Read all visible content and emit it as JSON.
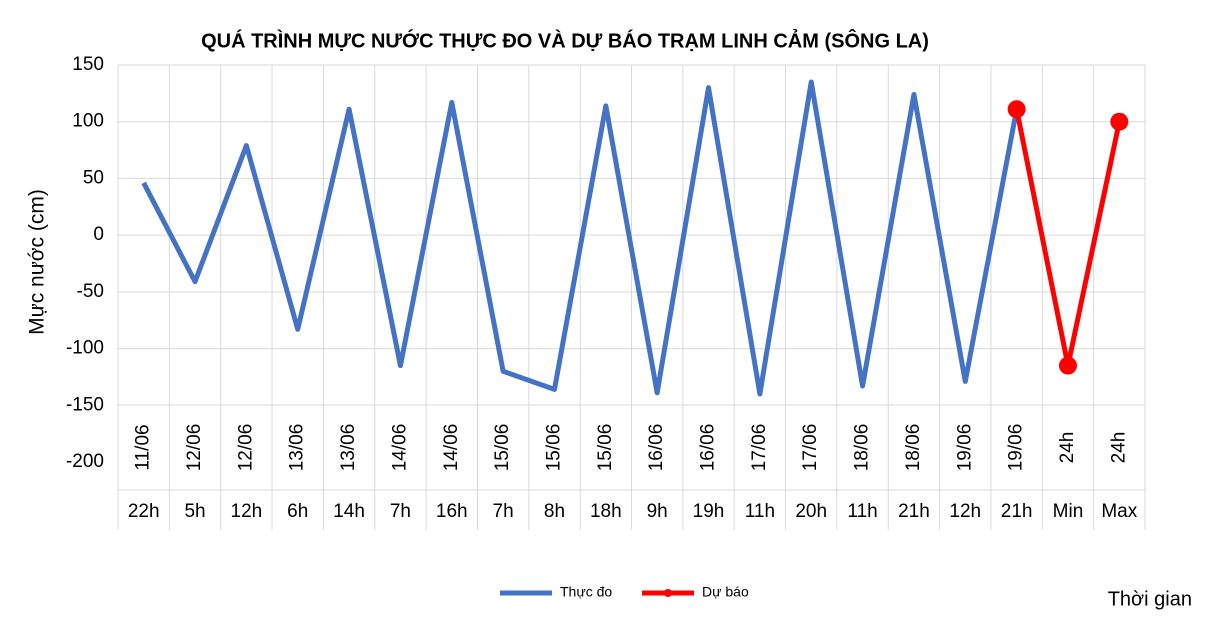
{
  "chart_data": {
    "type": "line",
    "title": "QUÁ TRÌNH MỰC NƯỚC THỰC ĐO VÀ DỰ BÁO TRẠM LINH CẢM (SÔNG LA)",
    "y_label": "Mực nước (cm)",
    "x_label": "Thời gian",
    "category_dates": [
      "11/06",
      "12/06",
      "12/06",
      "13/06",
      "13/06",
      "14/06",
      "14/06",
      "15/06",
      "15/06",
      "15/06",
      "16/06",
      "16/06",
      "17/06",
      "17/06",
      "18/06",
      "18/06",
      "19/06",
      "19/06",
      "24h",
      "24h"
    ],
    "categories": [
      "22h",
      "5h",
      "12h",
      "6h",
      "14h",
      "7h",
      "16h",
      "7h",
      "8h",
      "18h",
      "9h",
      "19h",
      "11h",
      "20h",
      "11h",
      "21h",
      "12h",
      "21h",
      "Min",
      "Max"
    ],
    "series": [
      {
        "name": "Thực đo",
        "color": "#4472c4",
        "values": [
          46,
          -41,
          79,
          -83,
          111,
          -115,
          117,
          -120,
          -136,
          114,
          -139,
          130,
          -140,
          135,
          -133,
          124,
          -129,
          111,
          null,
          null
        ]
      },
      {
        "name": "Dự báo",
        "color": "#ff0000",
        "marker": true,
        "values": [
          null,
          null,
          null,
          null,
          null,
          null,
          null,
          null,
          null,
          null,
          null,
          null,
          null,
          null,
          null,
          null,
          null,
          111,
          -115,
          100
        ]
      }
    ],
    "ylim": [
      -200,
      150
    ],
    "yticks": [
      -200,
      -150,
      -100,
      -50,
      0,
      50,
      100,
      150
    ],
    "grid": true,
    "legend": "bottom"
  }
}
